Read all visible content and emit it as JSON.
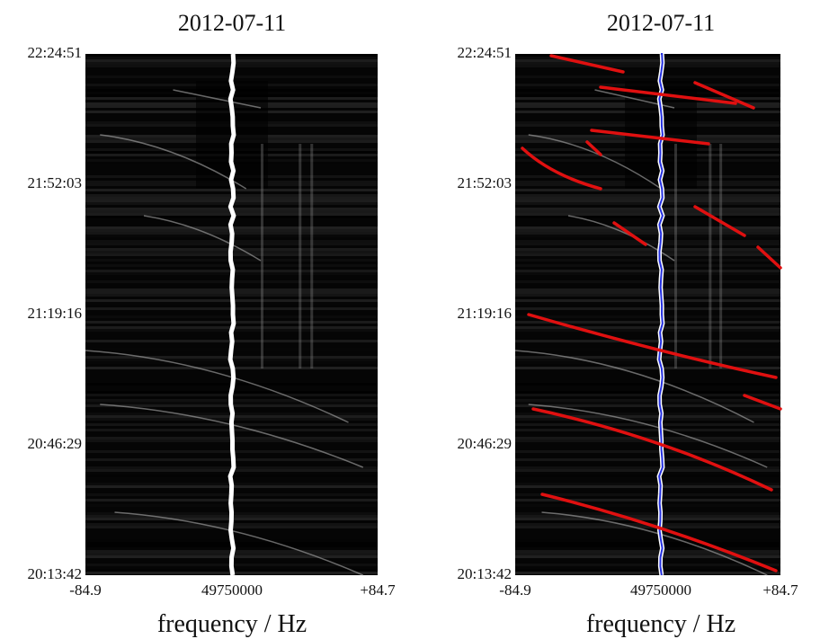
{
  "panels": [
    {
      "title": "2012-07-11",
      "yticks": [
        "22:24:51",
        "21:52:03",
        "21:19:16",
        "20:46:29",
        "20:13:42"
      ],
      "xticks": [
        "-84.9",
        "49750000",
        "+84.7"
      ],
      "xlabel": "frequency / Hz"
    },
    {
      "title": "2012-07-11",
      "yticks": [
        "22:24:51",
        "21:52:03",
        "21:19:16",
        "20:46:29",
        "20:13:42"
      ],
      "xticks": [
        "-84.9",
        "49750000",
        "+84.7"
      ],
      "xlabel": "frequency / Hz"
    }
  ]
}
